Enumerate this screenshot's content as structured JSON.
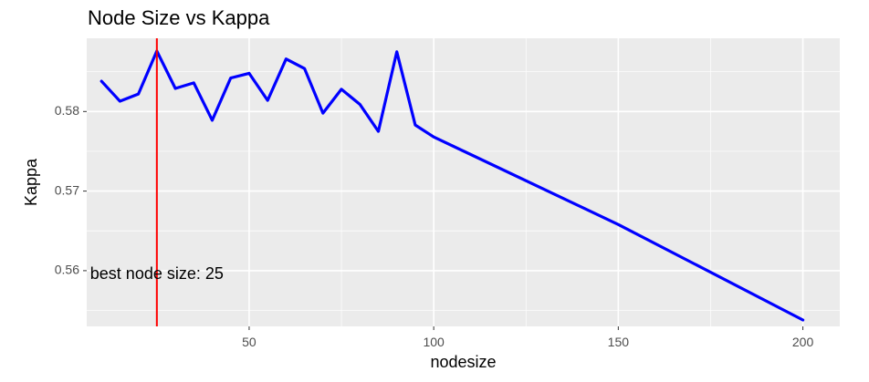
{
  "chart_data": {
    "type": "line",
    "title": "Node Size vs Kappa",
    "xlabel": "nodesize",
    "ylabel": "Kappa",
    "xlim": [
      6,
      210
    ],
    "ylim": [
      0.553,
      0.5892
    ],
    "x_ticks": [
      50,
      100,
      150,
      200
    ],
    "x_minor_ticks": [
      25,
      75,
      125,
      175
    ],
    "y_ticks": [
      0.56,
      0.57,
      0.58
    ],
    "y_minor_ticks": [
      0.555,
      0.565,
      0.575,
      0.585
    ],
    "grid": true,
    "series": [
      {
        "color": "#0000ff",
        "x": [
          10,
          15,
          20,
          25,
          30,
          35,
          40,
          45,
          50,
          55,
          60,
          65,
          70,
          75,
          80,
          85,
          90,
          95,
          100,
          150,
          200
        ],
        "y": [
          0.5838,
          0.5813,
          0.5822,
          0.5876,
          0.5829,
          0.5836,
          0.5789,
          0.5842,
          0.5848,
          0.5814,
          0.5866,
          0.5854,
          0.5798,
          0.5828,
          0.5809,
          0.5775,
          0.5875,
          0.5783,
          0.5768,
          0.5658,
          0.5538
        ]
      }
    ],
    "vline": {
      "x": 25,
      "color": "#ff0000"
    },
    "annotation": {
      "text": "best node size:  25",
      "x": 25,
      "y": 0.5595
    }
  }
}
